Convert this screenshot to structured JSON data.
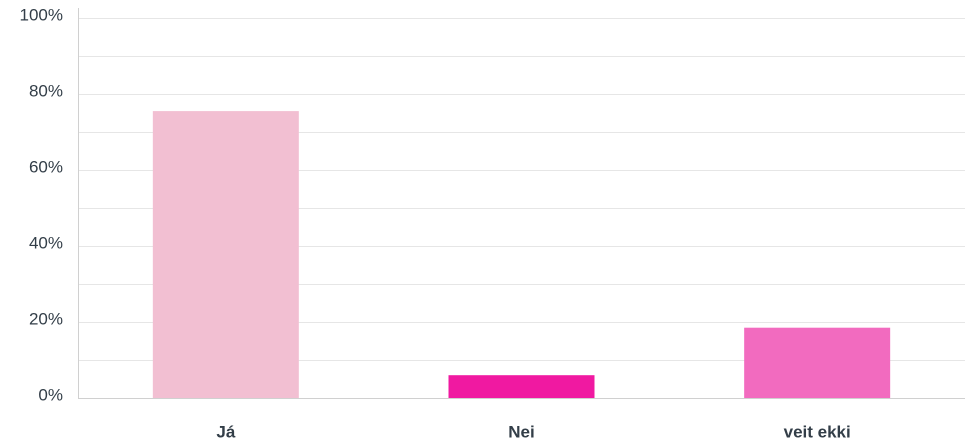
{
  "chart_data": {
    "type": "bar",
    "categories": [
      "Já",
      "Nei",
      "veit ekki"
    ],
    "values": [
      75.5,
      6,
      18.5
    ],
    "colors": [
      "#f2bfd2",
      "#f019a1",
      "#f26bbf"
    ],
    "ylim": [
      0,
      100
    ],
    "yticks": [
      0,
      20,
      40,
      60,
      80,
      100
    ],
    "ytick_labels": [
      "0%",
      "20%",
      "40%",
      "60%",
      "80%",
      "100%"
    ],
    "minor_grid": [
      10,
      30,
      50,
      70,
      90
    ],
    "grid": true,
    "legend": "none",
    "title": "",
    "xlabel": "",
    "ylabel": ""
  }
}
